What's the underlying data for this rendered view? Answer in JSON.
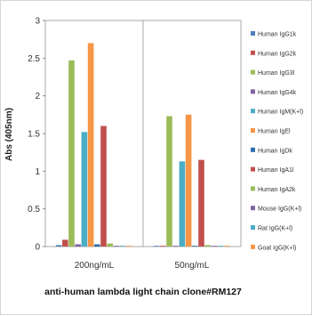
{
  "chart_data": {
    "type": "bar",
    "xlabel": "anti-human lambda light chain clone#RM127",
    "ylabel": "Abs (405nm)",
    "ylim": [
      0,
      3
    ],
    "yticks": [
      "0",
      "0.5",
      "1",
      "1.5",
      "2",
      "2.5",
      "3"
    ],
    "grid": false,
    "legend": "right",
    "categories": [
      "200ng/mL",
      "50ng/mL"
    ],
    "series": [
      {
        "name": "Human IgG1k",
        "color": "#4f81bd",
        "values": [
          0.02,
          0.01
        ]
      },
      {
        "name": "Human IgG2k",
        "color": "#c0504d",
        "values": [
          0.09,
          0.01
        ]
      },
      {
        "name": "Human IgG3l",
        "color": "#9bbb59",
        "values": [
          2.47,
          1.73
        ]
      },
      {
        "name": "Human IgG4k",
        "color": "#8064a2",
        "values": [
          0.03,
          0.01
        ]
      },
      {
        "name": "Human IgM(K+l)",
        "color": "#4bacc6",
        "values": [
          1.52,
          1.13
        ]
      },
      {
        "name": "Human IgEl",
        "color": "#f79646",
        "values": [
          2.7,
          1.75
        ]
      },
      {
        "name": "Human IgDk",
        "color": "#2c6fb0",
        "values": [
          0.03,
          0.01
        ]
      },
      {
        "name": "Human IgA1l",
        "color": "#c0504d",
        "values": [
          1.6,
          1.15
        ]
      },
      {
        "name": "Human IgA2k",
        "color": "#9bbb59",
        "values": [
          0.04,
          0.02
        ]
      },
      {
        "name": "Mouse IgG(K+l)",
        "color": "#8064a2",
        "values": [
          0.01,
          0.01
        ]
      },
      {
        "name": "Rat IgG(K+l)",
        "color": "#4bacc6",
        "values": [
          0.01,
          0.01
        ]
      },
      {
        "name": "Goat IgG(K+l)",
        "color": "#f79646",
        "values": [
          0.01,
          0.01
        ]
      }
    ]
  }
}
